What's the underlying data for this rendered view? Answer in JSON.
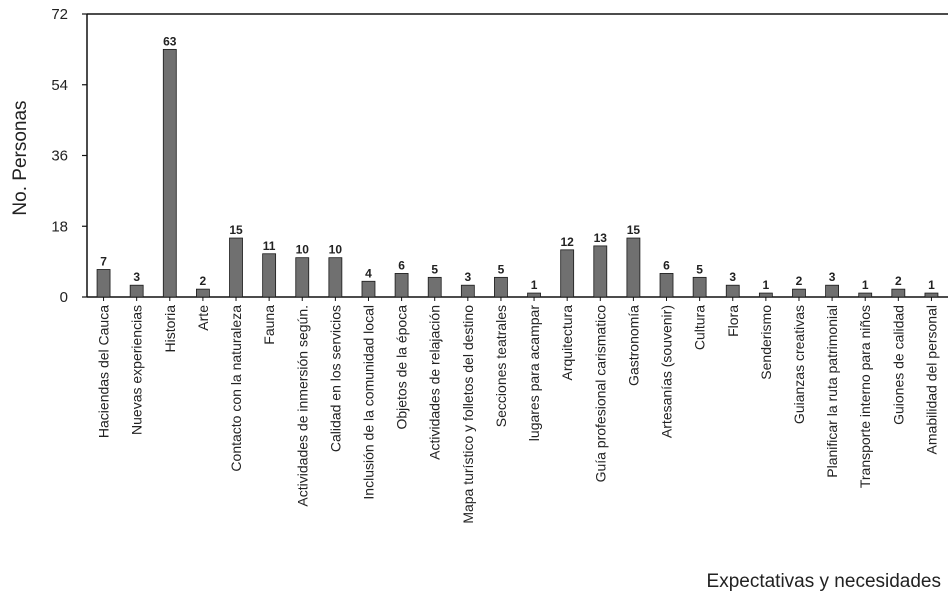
{
  "chart_data": {
    "type": "bar",
    "title": "",
    "xlabel": "Expectativas y necesidades",
    "ylabel": "No. Personas",
    "ylim": [
      0,
      72
    ],
    "yticks": [
      0,
      18,
      36,
      54,
      72
    ],
    "grid": false,
    "colors": {
      "bar": "#707070",
      "bar_stroke": "#1a1a1a",
      "axis": "#111111"
    },
    "categories": [
      "Haciendas del Cauca",
      "Nuevas experiencias",
      "Historia",
      "Arte",
      "Contacto con la naturaleza",
      "Fauna",
      "Actividades de inmersión según.",
      "Calidad en los servicios",
      "Inclusión de la comunidad local",
      "Objetos de la época",
      "Actividades de relajación",
      "Mapa turístico y folletos del destino",
      "Secciones teatrales",
      "lugares para acampar",
      "Arquitectura",
      "Guía profesional carismatico",
      "Gastronomía",
      "Artesanías (souvenir)",
      "Cultura",
      "Flora",
      "Senderismo",
      "Guianzas creativas",
      "Planificar la ruta patrimonial",
      "Transporte interno para niños",
      "Guiones de calidad",
      "Amabilidad del personal"
    ],
    "values": [
      7,
      3,
      63,
      2,
      15,
      11,
      10,
      10,
      4,
      6,
      5,
      3,
      5,
      1,
      12,
      13,
      15,
      6,
      5,
      3,
      1,
      2,
      3,
      1,
      2,
      1
    ]
  }
}
